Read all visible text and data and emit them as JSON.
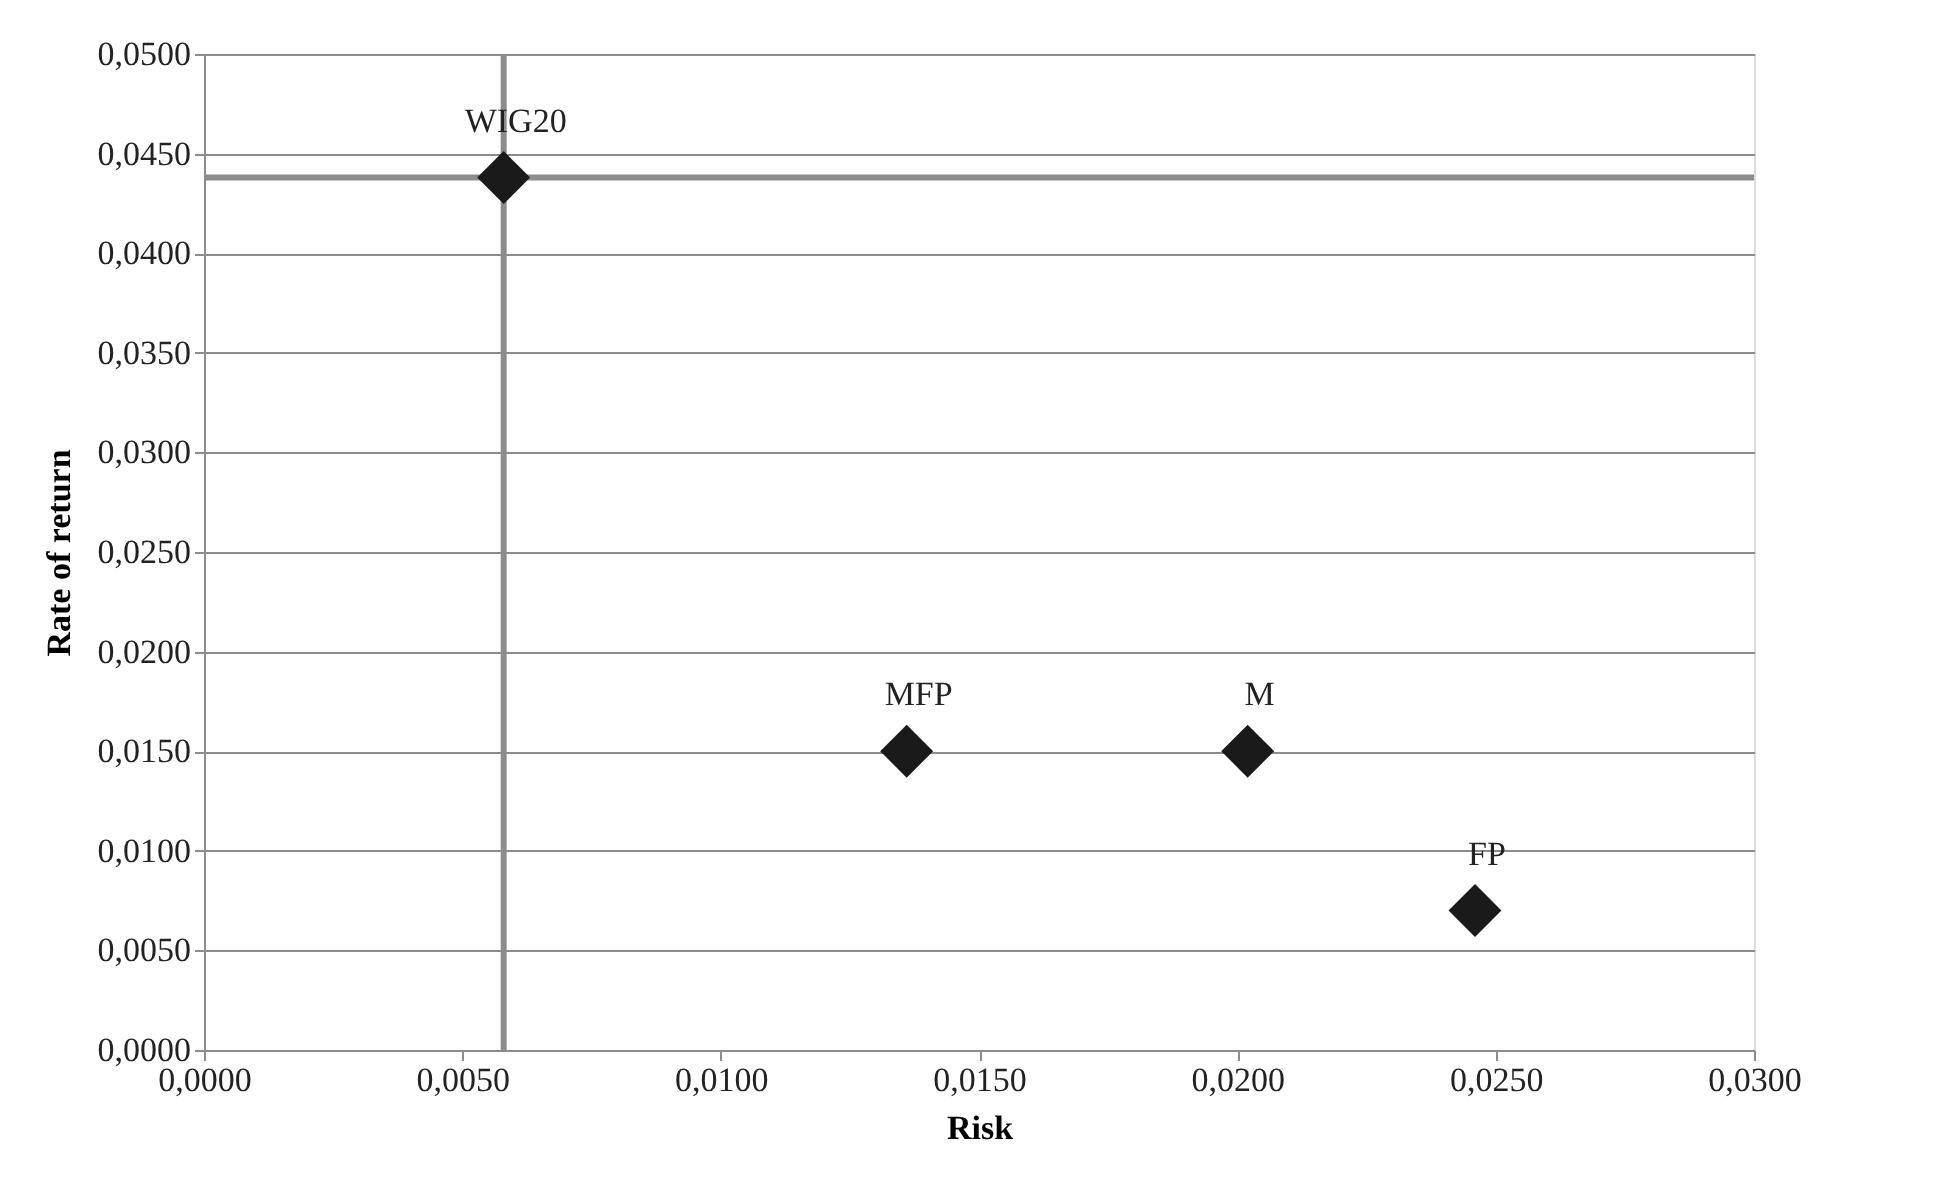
{
  "chart_data": {
    "type": "scatter",
    "xlabel": "Risk",
    "ylabel": "Rate of return",
    "x": [
      0.0058,
      0.0136,
      0.0202,
      0.0246
    ],
    "series": [
      {
        "color": "#1a1a1a",
        "values": [
          0.0438,
          0.015,
          0.015,
          0.007
        ]
      }
    ],
    "marker": "diamond",
    "annotations": [
      {
        "text": "WIG20",
        "x": 0.0058,
        "y": 0.0438
      },
      {
        "text": "MFP",
        "x": 0.0136,
        "y": 0.015
      },
      {
        "text": "M",
        "x": 0.0202,
        "y": 0.015
      },
      {
        "text": "FP",
        "x": 0.0246,
        "y": 0.007
      }
    ],
    "ref_lines": [
      {
        "axis": "x",
        "value": 0.0058,
        "color": "#8c8c8c"
      },
      {
        "axis": "y",
        "value": 0.0438,
        "color": "#8c8c8c"
      }
    ],
    "xlim": [
      0,
      0.03
    ],
    "xticks": [
      {
        "value": 0,
        "label": "0,0000"
      },
      {
        "value": 0.005,
        "label": "0,0050"
      },
      {
        "value": 0.01,
        "label": "0,0100"
      },
      {
        "value": 0.015,
        "label": "0,0150"
      },
      {
        "value": 0.02,
        "label": "0,0200"
      },
      {
        "value": 0.025,
        "label": "0,0250"
      },
      {
        "value": 0.03,
        "label": "0,0300"
      }
    ],
    "ylim": [
      0,
      0.05
    ],
    "yticks": [
      {
        "value": 0,
        "label": "0,0000"
      },
      {
        "value": 0.005,
        "label": "0,0050"
      },
      {
        "value": 0.01,
        "label": "0,0100"
      },
      {
        "value": 0.015,
        "label": "0,0150"
      },
      {
        "value": 0.02,
        "label": "0,0200"
      },
      {
        "value": 0.025,
        "label": "0,0250"
      },
      {
        "value": 0.03,
        "label": "0,0300"
      },
      {
        "value": 0.035,
        "label": "0,0350"
      },
      {
        "value": 0.04,
        "label": "0,0400"
      },
      {
        "value": 0.045,
        "label": "0,0450"
      },
      {
        "value": 0.05,
        "label": "0,0500"
      }
    ],
    "grid": "y"
  }
}
